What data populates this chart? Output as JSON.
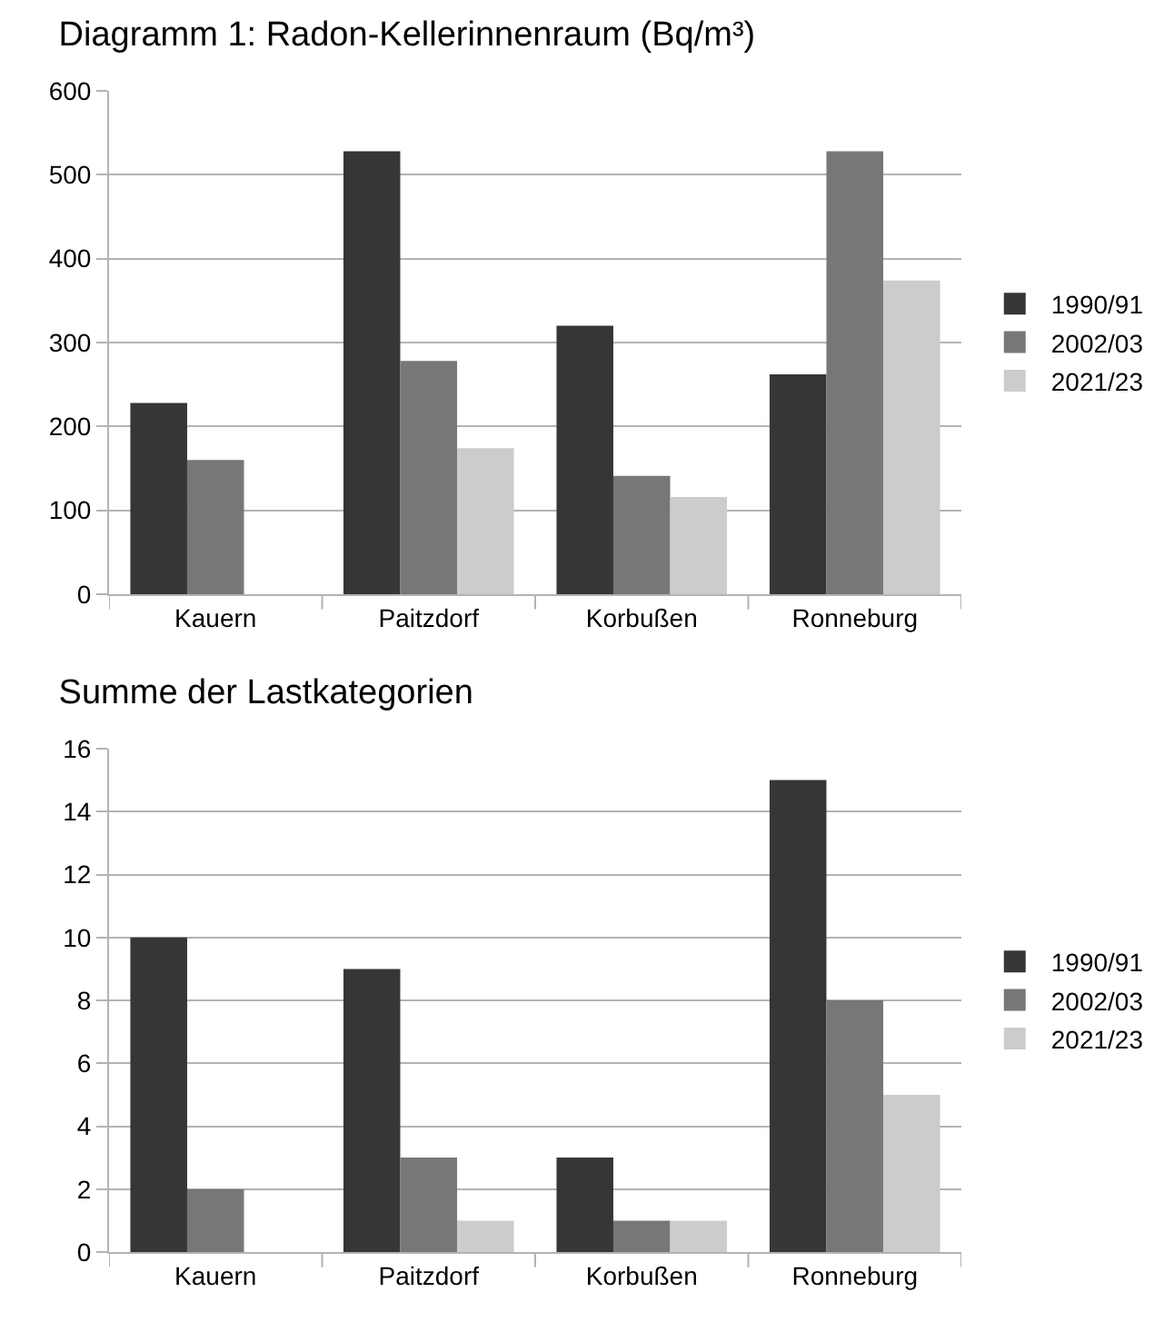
{
  "chart_data": [
    {
      "type": "bar",
      "title": "Diagramm 1: Radon-Kellerinnenraum (Bq/m³)",
      "categories": [
        "Kauern",
        "Paitzdorf",
        "Korbußen",
        "Ronneburg"
      ],
      "series": [
        {
          "name": "1990/91",
          "color": "#363636",
          "values": [
            228,
            528,
            320,
            262
          ]
        },
        {
          "name": "2002/03",
          "color": "#777777",
          "values": [
            160,
            278,
            141,
            528
          ]
        },
        {
          "name": "2021/23",
          "color": "#cccccc",
          "values": [
            null,
            174,
            116,
            374
          ]
        }
      ],
      "ylim": [
        0,
        600
      ],
      "yticks": [
        0,
        100,
        200,
        300,
        400,
        500,
        600
      ],
      "grid": "y",
      "legend": "right"
    },
    {
      "type": "bar",
      "title": "Summe der Lastkategorien",
      "categories": [
        "Kauern",
        "Paitzdorf",
        "Korbußen",
        "Ronneburg"
      ],
      "series": [
        {
          "name": "1990/91",
          "color": "#363636",
          "values": [
            10,
            9,
            3,
            15
          ]
        },
        {
          "name": "2002/03",
          "color": "#777777",
          "values": [
            2,
            3,
            1,
            8
          ]
        },
        {
          "name": "2021/23",
          "color": "#cccccc",
          "values": [
            null,
            1,
            1,
            5
          ]
        }
      ],
      "ylim": [
        0,
        16
      ],
      "yticks": [
        0,
        2,
        4,
        6,
        8,
        10,
        12,
        14,
        16
      ],
      "grid": "y",
      "legend": "right"
    }
  ]
}
